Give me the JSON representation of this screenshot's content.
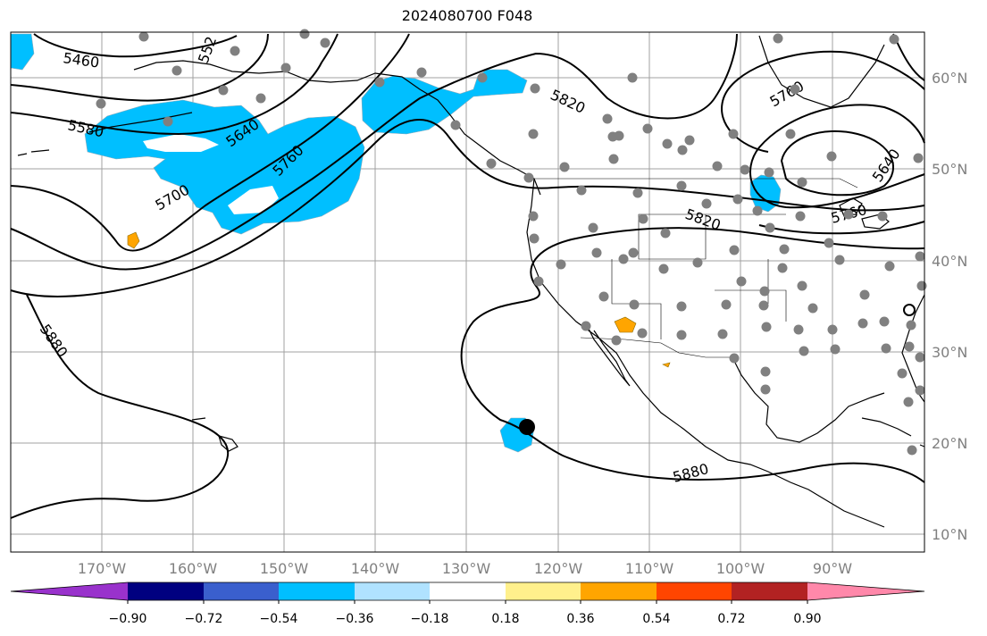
{
  "title": "2024080700 F048",
  "latitude_labels": [
    "60°N",
    "50°N",
    "40°N",
    "30°N",
    "20°N",
    "10°N"
  ],
  "longitude_labels": [
    "170°W",
    "160°W",
    "150°W",
    "140°W",
    "130°W",
    "120°W",
    "110°W",
    "100°W",
    "90°W"
  ],
  "contour_labels": [
    "5460",
    "552",
    "5580",
    "5640",
    "5700",
    "5760",
    "5820",
    "5760",
    "5640",
    "5760",
    "5820",
    "5880",
    "5880"
  ],
  "colorbar": {
    "colors": [
      "#9932cc",
      "#000080",
      "#3a5fcd",
      "#00bfff",
      "#b0e2ff",
      "#ffffff",
      "#fff08c",
      "#ffa500",
      "#ff4500",
      "#b22222",
      "#ff88aa"
    ],
    "tick_labels": [
      "−0.90",
      "−0.72",
      "−0.54",
      "−0.36",
      "−0.18",
      "0.18",
      "0.36",
      "0.54",
      "0.72",
      "0.90"
    ]
  }
}
